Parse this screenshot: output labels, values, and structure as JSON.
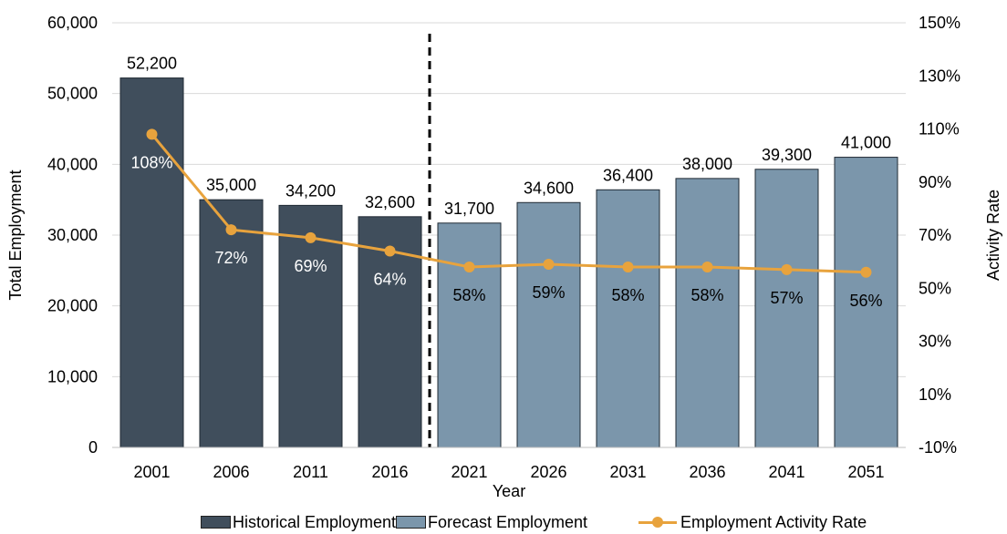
{
  "colors": {
    "historical": "#404e5c",
    "forecast": "#7b96ab",
    "rate": "#e8a33d",
    "grid": "#d9d9d9",
    "divider": "#000000"
  },
  "legend": {
    "historical": "Historical Employment",
    "forecast": "Forecast Employment",
    "rate": "Employment Activity Rate"
  },
  "chart_data": {
    "type": "bar",
    "xlabel": "Year",
    "ylabel": "Total Employment",
    "y2label": "Activity Rate",
    "ylim": [
      0,
      60000
    ],
    "y2lim": [
      -10,
      150
    ],
    "yticks": [
      "0",
      "10,000",
      "20,000",
      "30,000",
      "40,000",
      "50,000",
      "60,000"
    ],
    "y2ticks": [
      "-10%",
      "10%",
      "30%",
      "50%",
      "70%",
      "90%",
      "110%",
      "130%",
      "150%"
    ],
    "grid": true,
    "legend_position": "bottom",
    "divider_after": "2016",
    "categories": [
      "2001",
      "2006",
      "2011",
      "2016",
      "2021",
      "2026",
      "2031",
      "2036",
      "2041",
      "2051"
    ],
    "series": [
      {
        "name": "Historical Employment",
        "type": "bar",
        "values": [
          52200,
          35000,
          34200,
          32600,
          null,
          null,
          null,
          null,
          null,
          null
        ],
        "labels": [
          "52,200",
          "35,000",
          "34,200",
          "32,600",
          null,
          null,
          null,
          null,
          null,
          null
        ]
      },
      {
        "name": "Forecast Employment",
        "type": "bar",
        "values": [
          null,
          null,
          null,
          null,
          31700,
          34600,
          36400,
          38000,
          39300,
          41000
        ],
        "labels": [
          null,
          null,
          null,
          null,
          "31,700",
          "34,600",
          "36,400",
          "38,000",
          "39,300",
          "41,000"
        ]
      },
      {
        "name": "Employment Activity Rate",
        "type": "line",
        "axis": "right",
        "values": [
          108,
          72,
          69,
          64,
          58,
          59,
          58,
          58,
          57,
          56
        ],
        "labels": [
          "108%",
          "72%",
          "69%",
          "64%",
          "58%",
          "59%",
          "58%",
          "58%",
          "57%",
          "56%"
        ]
      }
    ]
  }
}
